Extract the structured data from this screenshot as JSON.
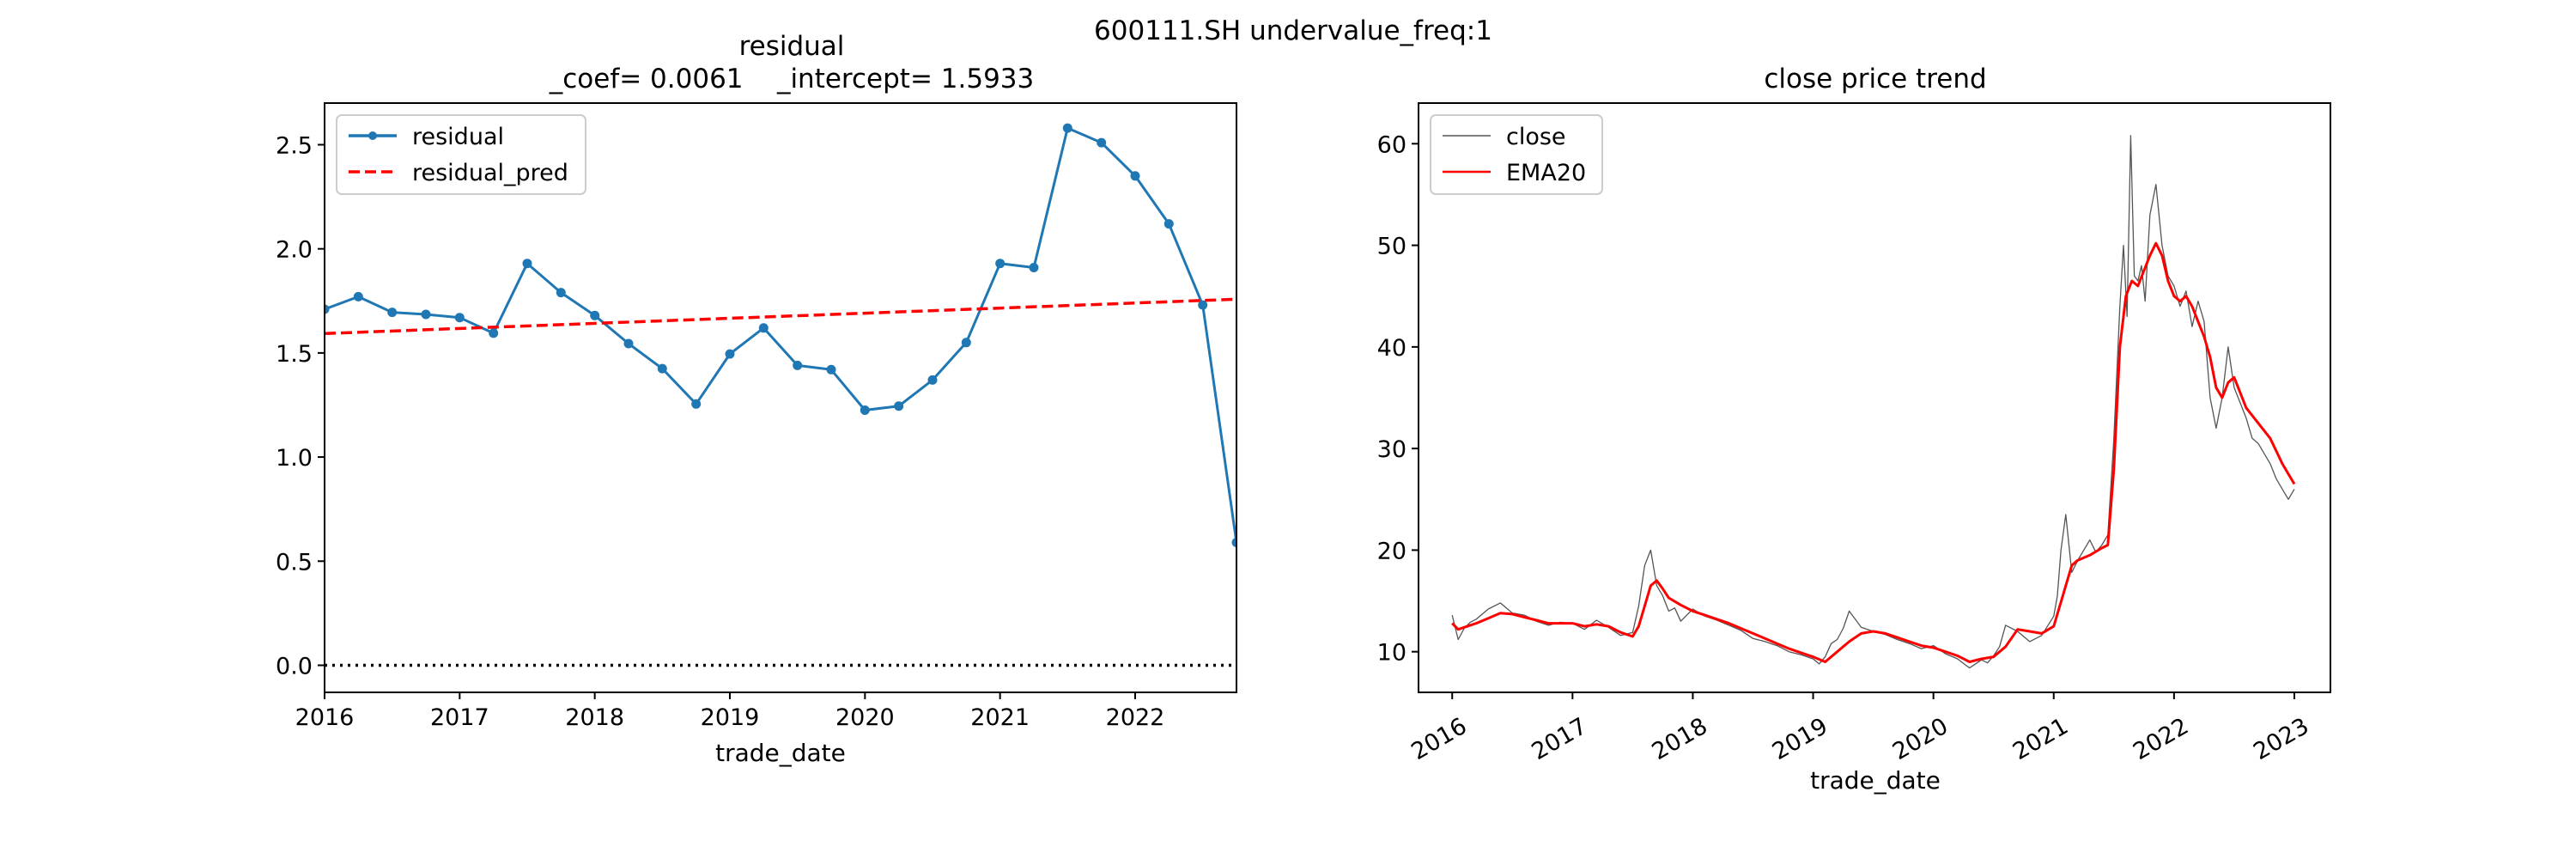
{
  "figure": {
    "suptitle": "600111.SH undervalue_freq:1"
  },
  "colors": {
    "residual": "#1f77b4",
    "residual_pred": "#ff0000",
    "zero_line": "#000000",
    "close": "#555555",
    "ema": "#ff0000"
  },
  "chart_data": [
    {
      "type": "line",
      "title": "residual",
      "subtitle": "_coef= 0.0061    _intercept= 1.5933",
      "xlabel": "trade_date",
      "ylabel": "",
      "xlim": [
        2016.0,
        2022.75
      ],
      "ylim": [
        -0.13,
        2.7
      ],
      "xticks": [
        2016,
        2017,
        2018,
        2019,
        2020,
        2021,
        2022
      ],
      "yticks": [
        "0.0",
        "0.5",
        "1.0",
        "1.5",
        "2.0",
        "2.5"
      ],
      "legend": "top-left",
      "grid": false,
      "series": [
        {
          "name": "residual",
          "style": "solid-marker",
          "x": [
            2016.0,
            2016.25,
            2016.5,
            2016.75,
            2017.0,
            2017.25,
            2017.5,
            2017.75,
            2018.0,
            2018.25,
            2018.5,
            2018.75,
            2019.0,
            2019.25,
            2019.5,
            2019.75,
            2020.0,
            2020.25,
            2020.5,
            2020.75,
            2021.0,
            2021.25,
            2021.5,
            2021.75,
            2022.0,
            2022.25,
            2022.5,
            2022.75
          ],
          "values": [
            1.71,
            1.77,
            1.695,
            1.685,
            1.67,
            1.595,
            1.93,
            1.79,
            1.68,
            1.545,
            1.425,
            1.255,
            1.495,
            1.62,
            1.44,
            1.42,
            1.225,
            1.245,
            1.37,
            1.55,
            1.93,
            1.91,
            2.58,
            2.51,
            2.35,
            2.12,
            1.73,
            0.59
          ]
        },
        {
          "name": "residual_pred",
          "style": "dashed",
          "x": [
            2016.0,
            2022.75
          ],
          "values": [
            1.5933,
            1.758
          ]
        },
        {
          "name": "",
          "style": "dotted",
          "x": [
            2016.0,
            2022.75
          ],
          "values": [
            0.0,
            0.0
          ]
        }
      ]
    },
    {
      "type": "line",
      "title": "close price trend",
      "xlabel": "trade_date",
      "ylabel": "",
      "xlim": [
        2015.72,
        2023.3
      ],
      "ylim": [
        6,
        64
      ],
      "xticks": [
        2016,
        2017,
        2018,
        2019,
        2020,
        2021,
        2022,
        2023
      ],
      "yticks": [
        10,
        20,
        30,
        40,
        50,
        60
      ],
      "legend": "top-left",
      "grid": false,
      "series": [
        {
          "name": "close",
          "style": "thin",
          "x": [
            2016.0,
            2016.05,
            2016.1,
            2016.15,
            2016.2,
            2016.3,
            2016.4,
            2016.5,
            2016.6,
            2016.7,
            2016.8,
            2016.9,
            2017.0,
            2017.1,
            2017.2,
            2017.3,
            2017.4,
            2017.5,
            2017.55,
            2017.6,
            2017.65,
            2017.7,
            2017.75,
            2017.8,
            2017.85,
            2017.9,
            2018.0,
            2018.1,
            2018.2,
            2018.3,
            2018.4,
            2018.5,
            2018.6,
            2018.7,
            2018.8,
            2018.9,
            2019.0,
            2019.05,
            2019.1,
            2019.15,
            2019.2,
            2019.25,
            2019.3,
            2019.4,
            2019.5,
            2019.6,
            2019.7,
            2019.8,
            2019.9,
            2020.0,
            2020.1,
            2020.2,
            2020.3,
            2020.4,
            2020.45,
            2020.5,
            2020.55,
            2020.6,
            2020.7,
            2020.8,
            2020.9,
            2021.0,
            2021.03,
            2021.06,
            2021.1,
            2021.15,
            2021.2,
            2021.25,
            2021.3,
            2021.35,
            2021.4,
            2021.45,
            2021.5,
            2021.55,
            2021.58,
            2021.61,
            2021.64,
            2021.67,
            2021.7,
            2021.73,
            2021.76,
            2021.8,
            2021.85,
            2021.9,
            2021.95,
            2022.0,
            2022.05,
            2022.1,
            2022.15,
            2022.2,
            2022.25,
            2022.3,
            2022.35,
            2022.4,
            2022.45,
            2022.5,
            2022.55,
            2022.6,
            2022.65,
            2022.7,
            2022.75,
            2022.8,
            2022.85,
            2022.9,
            2022.95,
            2023.0
          ],
          "values": [
            13.6,
            11.2,
            12.3,
            12.9,
            13.2,
            14.2,
            14.8,
            13.8,
            13.6,
            13.0,
            12.6,
            12.9,
            12.8,
            12.2,
            13.1,
            12.4,
            11.6,
            11.9,
            14.5,
            18.5,
            20.0,
            16.5,
            15.5,
            14.0,
            14.3,
            13.0,
            14.2,
            13.5,
            13.1,
            12.6,
            12.1,
            11.3,
            11.0,
            10.6,
            10.0,
            9.7,
            9.3,
            8.8,
            9.5,
            10.8,
            11.2,
            12.3,
            14.0,
            12.4,
            12.0,
            11.7,
            11.2,
            10.8,
            10.3,
            10.6,
            9.8,
            9.3,
            8.4,
            9.2,
            8.9,
            9.6,
            10.5,
            12.6,
            12.0,
            11.0,
            11.6,
            13.5,
            15.5,
            20.0,
            23.5,
            17.8,
            19.0,
            20.0,
            21.0,
            19.8,
            20.5,
            21.5,
            31.0,
            44.0,
            50.0,
            43.0,
            60.8,
            47.0,
            46.5,
            48.0,
            44.5,
            53.0,
            56.0,
            50.0,
            47.0,
            46.0,
            44.0,
            45.5,
            42.0,
            44.5,
            42.5,
            35.0,
            32.0,
            35.0,
            40.0,
            36.0,
            34.5,
            33.0,
            31.0,
            30.5,
            29.5,
            28.5,
            27.0,
            26.0,
            25.0,
            26.0
          ]
        },
        {
          "name": "EMA20",
          "style": "solid",
          "x": [
            2016.0,
            2016.05,
            2016.1,
            2016.2,
            2016.3,
            2016.4,
            2016.5,
            2016.6,
            2016.7,
            2016.8,
            2016.9,
            2017.0,
            2017.1,
            2017.2,
            2017.3,
            2017.4,
            2017.5,
            2017.55,
            2017.6,
            2017.65,
            2017.7,
            2017.75,
            2017.8,
            2017.9,
            2018.0,
            2018.1,
            2018.2,
            2018.3,
            2018.4,
            2018.5,
            2018.6,
            2018.7,
            2018.8,
            2018.9,
            2019.0,
            2019.1,
            2019.2,
            2019.3,
            2019.4,
            2019.5,
            2019.6,
            2019.7,
            2019.8,
            2019.9,
            2020.0,
            2020.1,
            2020.2,
            2020.3,
            2020.4,
            2020.5,
            2020.6,
            2020.7,
            2020.8,
            2020.9,
            2021.0,
            2021.05,
            2021.1,
            2021.15,
            2021.2,
            2021.3,
            2021.4,
            2021.45,
            2021.5,
            2021.55,
            2021.6,
            2021.65,
            2021.7,
            2021.75,
            2021.8,
            2021.85,
            2021.9,
            2021.95,
            2022.0,
            2022.05,
            2022.1,
            2022.15,
            2022.2,
            2022.25,
            2022.3,
            2022.35,
            2022.4,
            2022.45,
            2022.5,
            2022.55,
            2022.6,
            2022.7,
            2022.8,
            2022.9,
            2023.0
          ],
          "values": [
            12.8,
            12.2,
            12.4,
            12.8,
            13.3,
            13.8,
            13.7,
            13.4,
            13.1,
            12.8,
            12.8,
            12.8,
            12.5,
            12.7,
            12.5,
            11.9,
            11.5,
            12.5,
            14.5,
            16.5,
            17.0,
            16.2,
            15.3,
            14.6,
            14.0,
            13.6,
            13.2,
            12.8,
            12.3,
            11.8,
            11.3,
            10.8,
            10.3,
            9.9,
            9.5,
            9.0,
            10.0,
            11.0,
            11.8,
            12.0,
            11.8,
            11.4,
            11.0,
            10.6,
            10.4,
            10.0,
            9.6,
            9.0,
            9.3,
            9.5,
            10.5,
            12.2,
            12.0,
            11.8,
            12.5,
            14.5,
            16.5,
            18.5,
            19.0,
            19.5,
            20.2,
            20.5,
            28.0,
            40.0,
            45.0,
            46.5,
            46.0,
            47.5,
            49.0,
            50.2,
            49.0,
            46.5,
            45.0,
            44.5,
            45.0,
            44.0,
            42.5,
            41.0,
            39.0,
            36.0,
            35.0,
            36.5,
            37.0,
            35.5,
            34.0,
            32.5,
            31.0,
            28.5,
            26.5
          ]
        }
      ]
    }
  ]
}
